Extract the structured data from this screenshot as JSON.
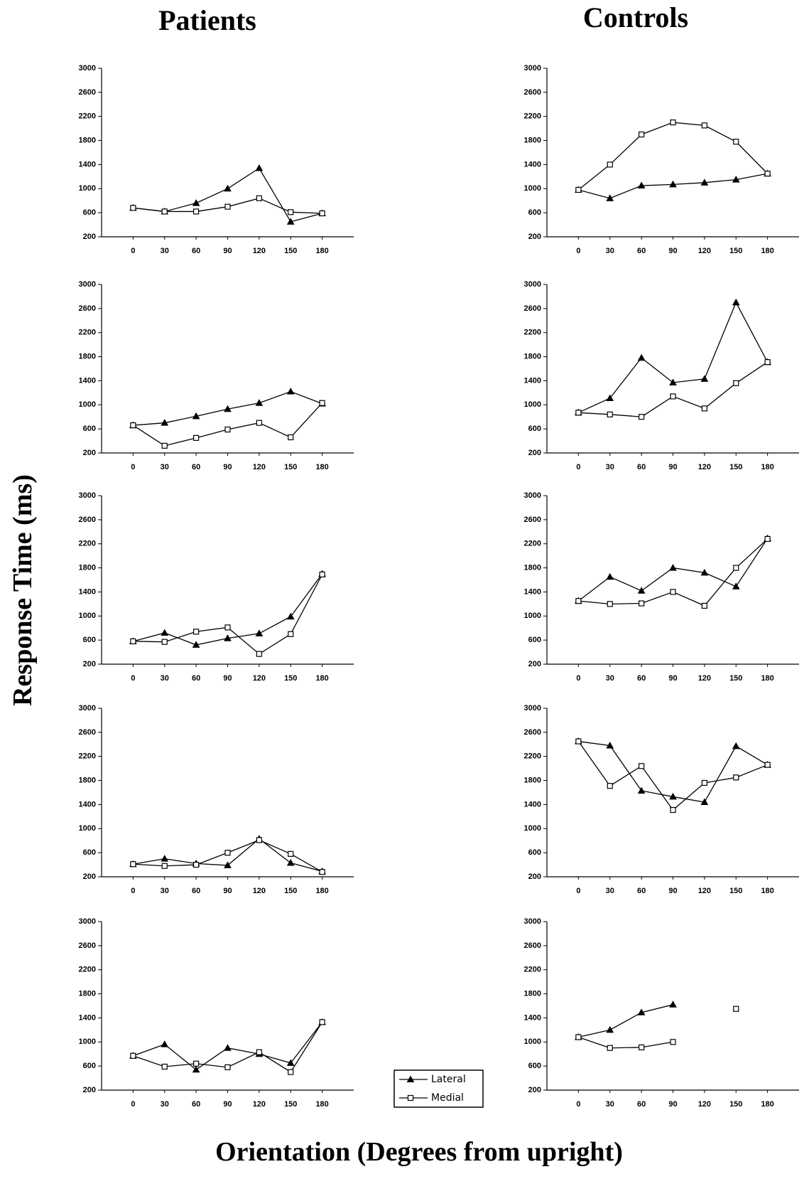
{
  "titles": {
    "left": "Patients",
    "right": "Controls",
    "ylabel": "Response Time (ms)",
    "xlabel": "Orientation (Degrees from upright)"
  },
  "legend": [
    {
      "name": "Lateral",
      "marker": "triangle"
    },
    {
      "name": "Medial",
      "marker": "square"
    }
  ],
  "chart_data": [
    {
      "type": "line",
      "x": [
        0,
        30,
        60,
        90,
        120,
        150,
        180
      ],
      "xlim": [
        -30,
        210
      ],
      "xticks": [
        0,
        30,
        60,
        90,
        120,
        150,
        180
      ],
      "ylim": [
        200,
        3000
      ],
      "yticks": [
        200,
        600,
        1000,
        1400,
        1800,
        2200,
        2600,
        3000
      ],
      "series": [
        {
          "marker": "triangle",
          "color": "#000000",
          "values": [
            680,
            620,
            760,
            1000,
            1340,
            450,
            590
          ]
        },
        {
          "marker": "square",
          "color": "#000000",
          "values": [
            680,
            620,
            620,
            700,
            840,
            610,
            590
          ]
        }
      ]
    },
    {
      "type": "line",
      "x": [
        0,
        30,
        60,
        90,
        120,
        150,
        180
      ],
      "xlim": [
        -30,
        210
      ],
      "xticks": [
        0,
        30,
        60,
        90,
        120,
        150,
        180
      ],
      "ylim": [
        200,
        3000
      ],
      "yticks": [
        200,
        600,
        1000,
        1400,
        1800,
        2200,
        2600,
        3000
      ],
      "series": [
        {
          "marker": "triangle",
          "color": "#000000",
          "values": [
            980,
            840,
            1050,
            1070,
            1100,
            1150,
            1250
          ]
        },
        {
          "marker": "square",
          "color": "#000000",
          "values": [
            980,
            1400,
            1900,
            2100,
            2050,
            1780,
            1250
          ]
        }
      ]
    },
    {
      "type": "line",
      "x": [
        0,
        30,
        60,
        90,
        120,
        150,
        180
      ],
      "xlim": [
        -30,
        210
      ],
      "xticks": [
        0,
        30,
        60,
        90,
        120,
        150,
        180
      ],
      "ylim": [
        200,
        3000
      ],
      "yticks": [
        200,
        600,
        1000,
        1400,
        1800,
        2200,
        2600,
        3000
      ],
      "series": [
        {
          "marker": "triangle",
          "color": "#000000",
          "values": [
            660,
            700,
            810,
            930,
            1030,
            1220,
            1020
          ]
        },
        {
          "marker": "square",
          "color": "#000000",
          "values": [
            660,
            320,
            450,
            590,
            700,
            460,
            1030
          ]
        }
      ]
    },
    {
      "type": "line",
      "x": [
        0,
        30,
        60,
        90,
        120,
        150,
        180
      ],
      "xlim": [
        -30,
        210
      ],
      "xticks": [
        0,
        30,
        60,
        90,
        120,
        150,
        180
      ],
      "ylim": [
        200,
        3000
      ],
      "yticks": [
        200,
        600,
        1000,
        1400,
        1800,
        2200,
        2600,
        3000
      ],
      "series": [
        {
          "marker": "triangle",
          "color": "#000000",
          "values": [
            870,
            1110,
            1780,
            1370,
            1430,
            2700,
            1710
          ]
        },
        {
          "marker": "square",
          "color": "#000000",
          "values": [
            870,
            840,
            800,
            1140,
            940,
            1360,
            1710
          ]
        }
      ]
    },
    {
      "type": "line",
      "x": [
        0,
        30,
        60,
        90,
        120,
        150,
        180
      ],
      "xlim": [
        -30,
        210
      ],
      "xticks": [
        0,
        30,
        60,
        90,
        120,
        150,
        180
      ],
      "ylim": [
        200,
        3000
      ],
      "yticks": [
        200,
        600,
        1000,
        1400,
        1800,
        2200,
        2600,
        3000
      ],
      "series": [
        {
          "marker": "triangle",
          "color": "#000000",
          "values": [
            580,
            720,
            520,
            630,
            710,
            990,
            1700
          ]
        },
        {
          "marker": "square",
          "color": "#000000",
          "values": [
            580,
            570,
            740,
            810,
            370,
            700,
            1690
          ]
        }
      ]
    },
    {
      "type": "line",
      "x": [
        0,
        30,
        60,
        90,
        120,
        150,
        180
      ],
      "xlim": [
        -30,
        210
      ],
      "xticks": [
        0,
        30,
        60,
        90,
        120,
        150,
        180
      ],
      "ylim": [
        200,
        3000
      ],
      "yticks": [
        200,
        600,
        1000,
        1400,
        1800,
        2200,
        2600,
        3000
      ],
      "series": [
        {
          "marker": "triangle",
          "color": "#000000",
          "values": [
            1250,
            1650,
            1420,
            1800,
            1720,
            1490,
            2290
          ]
        },
        {
          "marker": "square",
          "color": "#000000",
          "values": [
            1250,
            1200,
            1210,
            1400,
            1170,
            1800,
            2280
          ]
        }
      ]
    },
    {
      "type": "line",
      "x": [
        0,
        30,
        60,
        90,
        120,
        150,
        180
      ],
      "xlim": [
        -30,
        210
      ],
      "xticks": [
        0,
        30,
        60,
        90,
        120,
        150,
        180
      ],
      "ylim": [
        200,
        3000
      ],
      "yticks": [
        200,
        600,
        1000,
        1400,
        1800,
        2200,
        2600,
        3000
      ],
      "series": [
        {
          "marker": "triangle",
          "color": "#000000",
          "values": [
            410,
            500,
            420,
            390,
            830,
            430,
            290
          ]
        },
        {
          "marker": "square",
          "color": "#000000",
          "values": [
            410,
            380,
            400,
            600,
            810,
            580,
            280
          ]
        }
      ]
    },
    {
      "type": "line",
      "x": [
        0,
        30,
        60,
        90,
        120,
        150,
        180
      ],
      "xlim": [
        -30,
        210
      ],
      "xticks": [
        0,
        30,
        60,
        90,
        120,
        150,
        180
      ],
      "ylim": [
        200,
        3000
      ],
      "yticks": [
        200,
        600,
        1000,
        1400,
        1800,
        2200,
        2600,
        3000
      ],
      "series": [
        {
          "marker": "triangle",
          "color": "#000000",
          "values": [
            2450,
            2380,
            1630,
            1530,
            1440,
            2370,
            2060
          ]
        },
        {
          "marker": "square",
          "color": "#000000",
          "values": [
            2450,
            1710,
            2040,
            1310,
            1760,
            1850,
            2060
          ]
        }
      ]
    },
    {
      "type": "line",
      "x": [
        0,
        30,
        60,
        90,
        120,
        150,
        180
      ],
      "xlim": [
        -30,
        210
      ],
      "xticks": [
        0,
        30,
        60,
        90,
        120,
        150,
        180
      ],
      "ylim": [
        200,
        3000
      ],
      "yticks": [
        200,
        600,
        1000,
        1400,
        1800,
        2200,
        2600,
        3000
      ],
      "series": [
        {
          "marker": "triangle",
          "color": "#000000",
          "values": [
            770,
            960,
            540,
            900,
            800,
            650,
            1330
          ]
        },
        {
          "marker": "square",
          "color": "#000000",
          "values": [
            770,
            590,
            640,
            580,
            830,
            500,
            1330
          ]
        }
      ]
    },
    {
      "type": "line",
      "x": [
        0,
        30,
        60,
        90,
        120,
        150,
        180
      ],
      "xlim": [
        -30,
        210
      ],
      "xticks": [
        0,
        30,
        60,
        90,
        120,
        150,
        180
      ],
      "ylim": [
        200,
        3000
      ],
      "yticks": [
        200,
        600,
        1000,
        1400,
        1800,
        2200,
        2600,
        3000
      ],
      "series": [
        {
          "marker": "triangle",
          "color": "#000000",
          "values": [
            1080,
            1200,
            1490,
            1620,
            null,
            null,
            null
          ]
        },
        {
          "marker": "square",
          "color": "#000000",
          "values": [
            1080,
            900,
            910,
            1000,
            null,
            1550,
            null
          ]
        }
      ]
    }
  ]
}
